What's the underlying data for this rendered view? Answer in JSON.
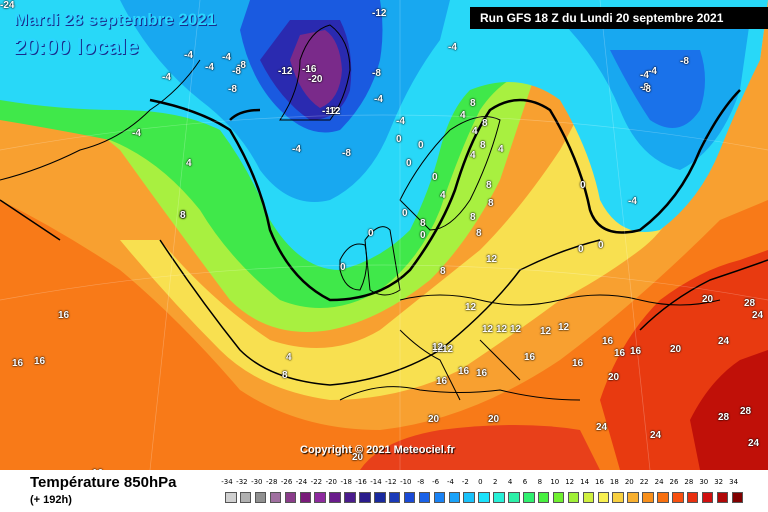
{
  "header": {
    "date_label": "Mardi 28 septembre 2021",
    "time_label": "20:00 locale",
    "run_label": "Run GFS 18 Z du Lundi 20 septembre 2021"
  },
  "copyright": "Copyright © 2021 Meteociel.fr",
  "footer": {
    "field_title": "Température 850hPa",
    "lead_time": "(+ 192h)"
  },
  "legend": {
    "ticks": [
      "-34",
      "-32",
      "-30",
      "-28",
      "-26",
      "-24",
      "-22",
      "-20",
      "-18",
      "-16",
      "-14",
      "-12",
      "-10",
      "-8",
      "-6",
      "-4",
      "-2",
      "0",
      "2",
      "4",
      "6",
      "8",
      "10",
      "12",
      "14",
      "16",
      "18",
      "20",
      "22",
      "24",
      "26",
      "28",
      "30",
      "32",
      "34"
    ],
    "colors": [
      "#d0d0d0",
      "#b0b0b0",
      "#909090",
      "#a070a0",
      "#8a3c8a",
      "#7a1c7a",
      "#8e2a9e",
      "#6a1c8c",
      "#4a1c8c",
      "#2a1c8c",
      "#1a2a9e",
      "#1a3ab8",
      "#1a4ad6",
      "#1a62e8",
      "#1a82f4",
      "#1aa2f8",
      "#1ac2fa",
      "#1ae2fc",
      "#28f0d8",
      "#2cf0a8",
      "#30f070",
      "#48f040",
      "#70f030",
      "#a0f038",
      "#d0f040",
      "#f8f050",
      "#f8d040",
      "#f8b030",
      "#f8901c",
      "#f87010",
      "#f85010",
      "#e83010",
      "#d01010",
      "#b00808",
      "#800000"
    ]
  },
  "map": {
    "isotherm_labels": [
      "-12",
      "-12",
      "-8",
      "-16",
      "-20",
      "-8",
      "-12",
      "-8",
      "-8",
      "-4",
      "-4",
      "-4",
      "-8",
      "-8",
      "-4",
      "-12",
      "-4",
      "-4",
      "-4",
      "-8",
      "-4",
      "-4",
      "-4",
      "-4",
      "-4",
      "-8",
      "-4",
      "0",
      "0",
      "0",
      "0",
      "0",
      "0",
      "0",
      "0",
      "0",
      "0",
      "0",
      "4",
      "4",
      "4",
      "4",
      "4",
      "4",
      "4",
      "4",
      "8",
      "8",
      "8",
      "8",
      "8",
      "8",
      "8",
      "8",
      "8",
      "8",
      "8",
      "8",
      "12",
      "12",
      "12",
      "12",
      "12",
      "12",
      "12",
      "12",
      "12",
      "12",
      "16",
      "16",
      "16",
      "16",
      "16",
      "16",
      "16",
      "16",
      "16",
      "16",
      "16",
      "16",
      "20",
      "20",
      "20",
      "20",
      "20",
      "20",
      "24",
      "24",
      "24",
      "24",
      "24",
      "28",
      "28",
      "28",
      "-24"
    ]
  }
}
